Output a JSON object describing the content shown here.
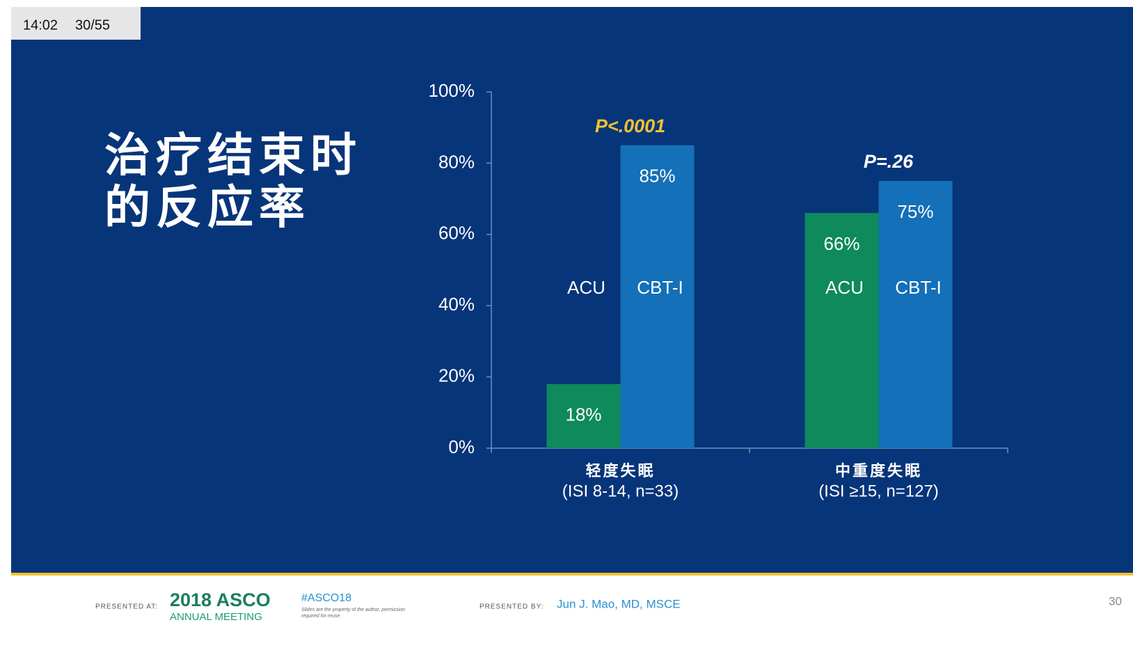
{
  "overlay": {
    "time": "14:02",
    "position": "30/55"
  },
  "slide": {
    "title_lines": [
      "治疗结束时",
      "的反应率"
    ]
  },
  "chart_data": {
    "type": "bar",
    "categories": [
      "轻度失眠",
      "中重度失眠"
    ],
    "category_notes": [
      "(ISI 8-14, n=33)",
      "(ISI ≥15, n=127)"
    ],
    "series": [
      {
        "name": "ACU",
        "color": "#0e8a5c",
        "values": [
          18,
          66
        ],
        "value_labels": [
          "18%",
          "66%"
        ]
      },
      {
        "name": "CBT-I",
        "color": "#1470b8",
        "values": [
          85,
          75
        ],
        "value_labels": [
          "85%",
          "75%"
        ]
      }
    ],
    "p_values": [
      "P<.0001",
      "P=.26"
    ],
    "p_value_colors": [
      "#f2c230",
      "#ffffff"
    ],
    "ylim": [
      0,
      100
    ],
    "yticks": [
      {
        "value": 0,
        "label": "0%"
      },
      {
        "value": 20,
        "label": "20%"
      },
      {
        "value": 40,
        "label": "40%"
      },
      {
        "value": 60,
        "label": "60%"
      },
      {
        "value": 80,
        "label": "80%"
      },
      {
        "value": 100,
        "label": "100%"
      }
    ]
  },
  "footer": {
    "presented_at": "PRESENTED AT:",
    "asco_year": "2018 ASCO",
    "asco_meeting": "ANNUAL MEETING",
    "hashtag": "#ASCO18",
    "disclaimer": "Slides are the property of the author, permission required for reuse.",
    "presented_by": "PRESENTED BY:",
    "presenter": "Jun J. Mao, MD, MSCE",
    "page_number": "30"
  }
}
